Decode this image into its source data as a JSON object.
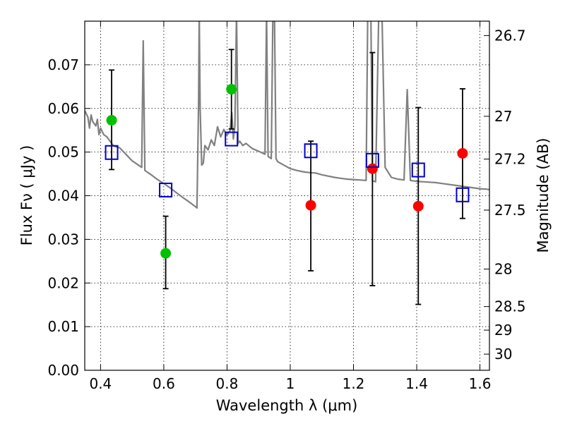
{
  "chart_data": {
    "type": "scatter",
    "xlabel": "Wavelength  λ (μm)",
    "ylabel": "Flux  Fν  ( μJy )",
    "ylabel_right": "Magnitude (AB)",
    "xlim": [
      0.35,
      1.63
    ],
    "ylim": [
      0.0,
      0.08
    ],
    "grid": true,
    "x_ticks": [
      0.4,
      0.6,
      0.8,
      1.0,
      1.2,
      1.4,
      1.6
    ],
    "x_tick_labels": [
      "0.4",
      "0.6",
      "0.8",
      "1",
      "1.2",
      "1.4",
      "1.6"
    ],
    "y_ticks": [
      0.0,
      0.01,
      0.02,
      0.03,
      0.04,
      0.05,
      0.06,
      0.07
    ],
    "y_tick_labels": [
      "0.00",
      "0.01",
      "0.02",
      "0.03",
      "0.04",
      "0.05",
      "0.06",
      "0.07"
    ],
    "right_ticks": [
      {
        "label": "26.7",
        "flux": 0.0767
      },
      {
        "label": "27",
        "flux": 0.0582
      },
      {
        "label": "27.2",
        "flux": 0.0484
      },
      {
        "label": "27.5",
        "flux": 0.0367
      },
      {
        "label": "28",
        "flux": 0.0232
      },
      {
        "label": "28.5",
        "flux": 0.0146
      },
      {
        "label": "29",
        "flux": 0.0092
      },
      {
        "label": "30",
        "flux": 0.0037
      }
    ],
    "series": [
      {
        "name": "green detections",
        "marker": "circle",
        "color": "#00c000",
        "points": [
          {
            "x": 0.435,
            "y": 0.0573,
            "ylo": 0.046,
            "yhi": 0.0688
          },
          {
            "x": 0.606,
            "y": 0.0268,
            "ylo": 0.0187,
            "yhi": 0.0353
          },
          {
            "x": 0.814,
            "y": 0.0644,
            "ylo": 0.0553,
            "yhi": 0.0735
          }
        ]
      },
      {
        "name": "red detections",
        "marker": "circle",
        "color": "#ff0000",
        "points": [
          {
            "x": 1.065,
            "y": 0.0378,
            "ylo": 0.0228,
            "yhi": 0.0525
          },
          {
            "x": 1.26,
            "y": 0.0462,
            "ylo": 0.0194,
            "yhi": 0.0728
          },
          {
            "x": 1.405,
            "y": 0.0376,
            "ylo": 0.0151,
            "yhi": 0.0602
          },
          {
            "x": 1.545,
            "y": 0.0497,
            "ylo": 0.0348,
            "yhi": 0.0645
          }
        ]
      },
      {
        "name": "model photometry",
        "marker": "square",
        "color": "#0000cc",
        "points": [
          {
            "x": 0.435,
            "y": 0.0499
          },
          {
            "x": 0.606,
            "y": 0.0413
          },
          {
            "x": 0.814,
            "y": 0.053
          },
          {
            "x": 1.065,
            "y": 0.0503
          },
          {
            "x": 1.26,
            "y": 0.0481
          },
          {
            "x": 1.405,
            "y": 0.0459
          },
          {
            "x": 1.545,
            "y": 0.0402
          }
        ]
      }
    ],
    "spectrum": {
      "name": "model spectrum",
      "color": "#808080",
      "points": [
        [
          0.35,
          0.0595
        ],
        [
          0.36,
          0.058
        ],
        [
          0.365,
          0.0555
        ],
        [
          0.37,
          0.0585
        ],
        [
          0.375,
          0.057
        ],
        [
          0.38,
          0.0565
        ],
        [
          0.385,
          0.056
        ],
        [
          0.39,
          0.0575
        ],
        [
          0.395,
          0.054
        ],
        [
          0.4,
          0.0555
        ],
        [
          0.41,
          0.054
        ],
        [
          0.42,
          0.0535
        ],
        [
          0.43,
          0.0525
        ],
        [
          0.44,
          0.0515
        ],
        [
          0.45,
          0.0512
        ],
        [
          0.46,
          0.051
        ],
        [
          0.48,
          0.0495
        ],
        [
          0.5,
          0.048
        ],
        [
          0.52,
          0.047
        ],
        [
          0.53,
          0.0465
        ],
        [
          0.535,
          0.0755
        ],
        [
          0.54,
          0.0458
        ],
        [
          0.56,
          0.0448
        ],
        [
          0.58,
          0.0437
        ],
        [
          0.6,
          0.0428
        ],
        [
          0.62,
          0.0418
        ],
        [
          0.64,
          0.0407
        ],
        [
          0.66,
          0.0396
        ],
        [
          0.68,
          0.0386
        ],
        [
          0.7,
          0.0375
        ],
        [
          0.705,
          0.0372
        ],
        [
          0.71,
          0.062
        ],
        [
          0.712,
          0.082
        ],
        [
          0.715,
          0.06
        ],
        [
          0.72,
          0.047
        ],
        [
          0.725,
          0.0475
        ],
        [
          0.73,
          0.0515
        ],
        [
          0.74,
          0.0505
        ],
        [
          0.75,
          0.0528
        ],
        [
          0.76,
          0.0515
        ],
        [
          0.77,
          0.0558
        ],
        [
          0.78,
          0.0535
        ],
        [
          0.79,
          0.0552
        ],
        [
          0.8,
          0.0538
        ],
        [
          0.81,
          0.055
        ],
        [
          0.815,
          0.059
        ],
        [
          0.82,
          0.053
        ],
        [
          0.825,
          0.056
        ],
        [
          0.83,
          0.082
        ],
        [
          0.835,
          0.052
        ],
        [
          0.84,
          0.0525
        ],
        [
          0.85,
          0.0515
        ],
        [
          0.86,
          0.052
        ],
        [
          0.88,
          0.0508
        ],
        [
          0.9,
          0.0502
        ],
        [
          0.92,
          0.0495
        ],
        [
          0.925,
          0.082
        ],
        [
          0.93,
          0.049
        ],
        [
          0.94,
          0.0485
        ],
        [
          0.945,
          0.082
        ],
        [
          0.95,
          0.082
        ],
        [
          0.955,
          0.0485
        ],
        [
          0.96,
          0.0478
        ],
        [
          0.98,
          0.047
        ],
        [
          1.0,
          0.0462
        ],
        [
          1.02,
          0.0458
        ],
        [
          1.04,
          0.0455
        ],
        [
          1.06,
          0.0453
        ],
        [
          1.08,
          0.0452
        ],
        [
          1.1,
          0.0448
        ],
        [
          1.12,
          0.0445
        ],
        [
          1.14,
          0.0442
        ],
        [
          1.16,
          0.044
        ],
        [
          1.18,
          0.0438
        ],
        [
          1.2,
          0.0437
        ],
        [
          1.22,
          0.0436
        ],
        [
          1.24,
          0.0435
        ],
        [
          1.245,
          0.082
        ],
        [
          1.255,
          0.082
        ],
        [
          1.26,
          0.0434
        ],
        [
          1.27,
          0.0432
        ],
        [
          1.28,
          0.082
        ],
        [
          1.29,
          0.082
        ],
        [
          1.3,
          0.0465
        ],
        [
          1.32,
          0.0442
        ],
        [
          1.34,
          0.0438
        ],
        [
          1.36,
          0.0436
        ],
        [
          1.37,
          0.0643
        ],
        [
          1.38,
          0.0435
        ],
        [
          1.4,
          0.0433
        ],
        [
          1.42,
          0.0432
        ],
        [
          1.44,
          0.0431
        ],
        [
          1.46,
          0.043
        ],
        [
          1.48,
          0.0428
        ],
        [
          1.5,
          0.0426
        ],
        [
          1.52,
          0.0424
        ],
        [
          1.54,
          0.0422
        ],
        [
          1.56,
          0.042
        ],
        [
          1.58,
          0.0418
        ],
        [
          1.6,
          0.0416
        ],
        [
          1.62,
          0.0415
        ],
        [
          1.63,
          0.0414
        ]
      ]
    }
  }
}
